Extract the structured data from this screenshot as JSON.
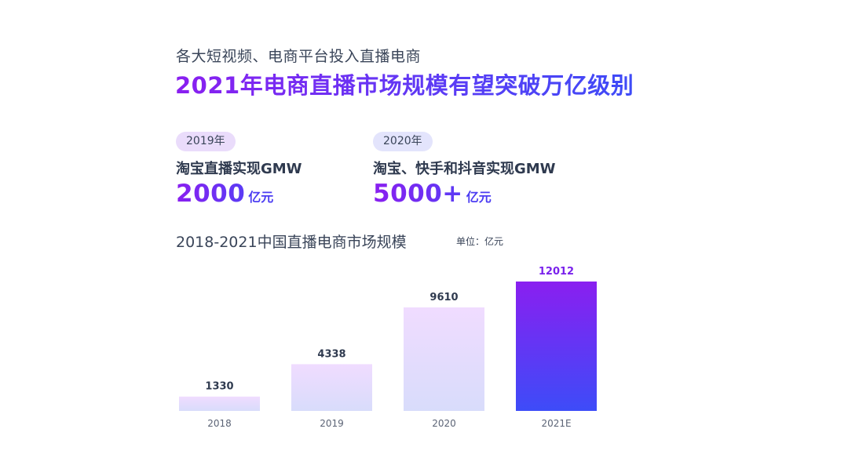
{
  "header": {
    "subtitle": "各大短视频、电商平台投入直播电商",
    "headline": "2021年电商直播市场规模有望突破万亿级别"
  },
  "stats": [
    {
      "year": "2019年",
      "label": "淘宝直播实现GMW",
      "value": "2000",
      "unit": "亿元"
    },
    {
      "year": "2020年",
      "label": "淘宝、快手和抖音实现GMW",
      "value": "5000+",
      "unit": "亿元"
    }
  ],
  "chart": {
    "title": "2018-2021中国直播电商市场规模",
    "unit": "单位：亿元"
  },
  "colors": {
    "bar_light_top": "#f0dcff",
    "bar_light_bottom": "#d8dcfb",
    "bar_dark_top": "#8a1ff0",
    "bar_dark_bottom": "#3d4cf8",
    "accent": "#7a22ec"
  },
  "chart_data": {
    "type": "bar",
    "title": "2018-2021中国直播电商市场规模",
    "xlabel": "",
    "ylabel": "",
    "unit": "单位：亿元",
    "categories": [
      "2018",
      "2019",
      "2020",
      "2021E"
    ],
    "values": [
      1330,
      4338,
      9610,
      12012
    ],
    "highlight_index": 3,
    "grid": false,
    "legend": "none"
  }
}
